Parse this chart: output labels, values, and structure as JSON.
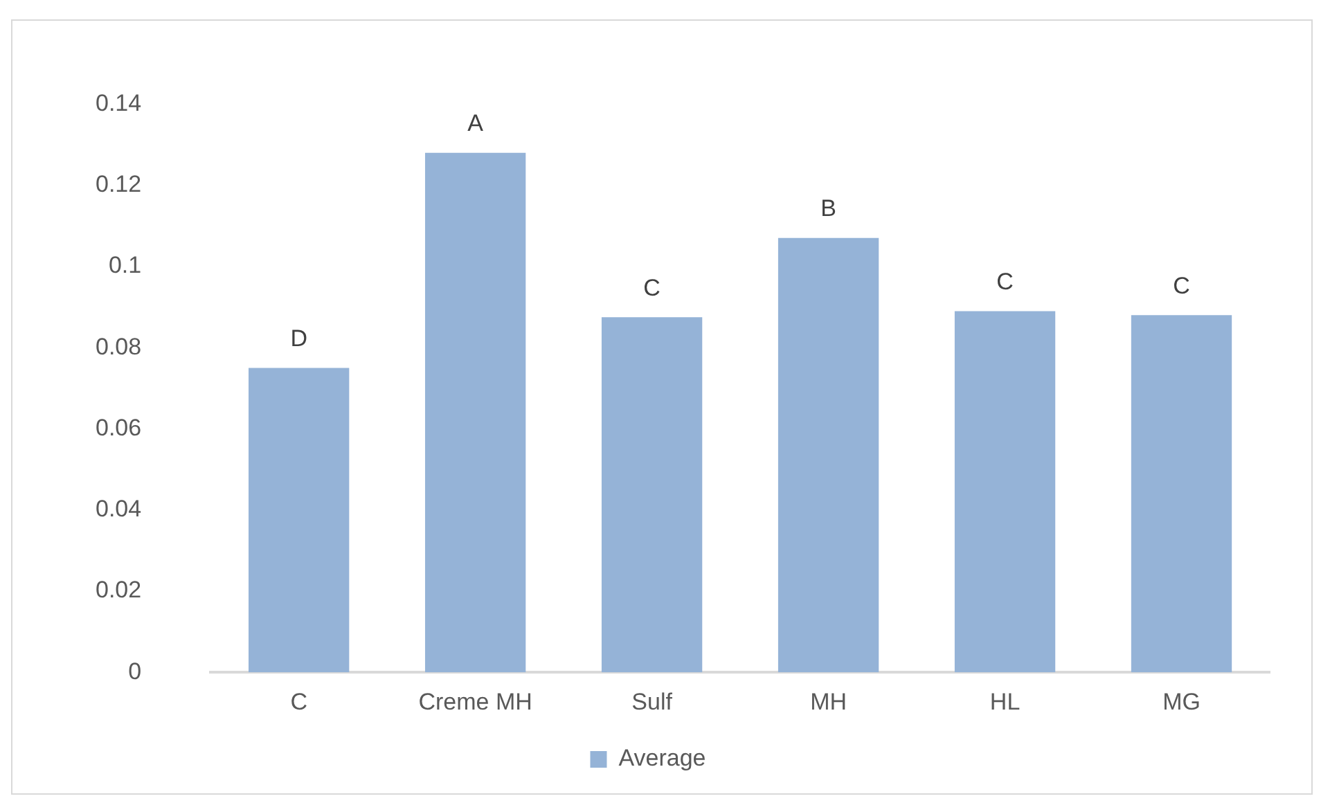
{
  "chart_data": {
    "type": "bar",
    "categories": [
      "C",
      "Creme MH",
      "Sulf",
      "MH",
      "HL",
      "MG"
    ],
    "series": [
      {
        "name": "Average",
        "color": "#95b3d7",
        "values": [
          0.075,
          0.128,
          0.0875,
          0.107,
          0.089,
          0.088
        ]
      }
    ],
    "ylim": [
      0,
      0.14
    ],
    "yticks": [
      0,
      0.02,
      0.04,
      0.06,
      0.08,
      0.1,
      0.12,
      0.14
    ],
    "grid": false,
    "legend": "bottom",
    "annotations": [
      {
        "text": "D",
        "x": "C",
        "y": 0.075
      },
      {
        "text": "A",
        "x": "Creme MH",
        "y": 0.128
      },
      {
        "text": "C",
        "x": "Sulf",
        "y": 0.0875
      },
      {
        "text": "B",
        "x": "MH",
        "y": 0.107
      },
      {
        "text": "C",
        "x": "HL",
        "y": 0.089
      },
      {
        "text": "C",
        "x": "MG",
        "y": 0.088
      }
    ]
  }
}
